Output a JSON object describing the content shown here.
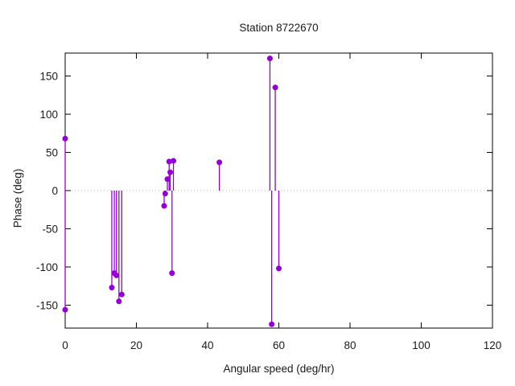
{
  "page": {
    "background": "#ffffff"
  },
  "colors": {
    "series": "#9400d3",
    "zero_line": "#b8b8b8",
    "border": "#000000",
    "text": "#1a1a1a"
  },
  "chart_data": {
    "type": "scatter",
    "style": "impulses-with-points (stem plot)",
    "title": "Station 8722670",
    "xlabel": "Angular speed (deg/hr)",
    "ylabel": "Phase (deg)",
    "xlim": [
      0,
      120
    ],
    "ylim": [
      -180,
      180
    ],
    "xticks": [
      0,
      20,
      40,
      60,
      80,
      100,
      120
    ],
    "yticks": [
      -150,
      -100,
      -50,
      0,
      50,
      100,
      150
    ],
    "grid": false,
    "legend": false,
    "zero_line_dotted": true,
    "series": [
      {
        "name": "phase",
        "color": "#9400d3",
        "x": [
          0,
          0,
          13.1,
          13.8,
          14.4,
          15.1,
          15.9,
          27.8,
          28.1,
          28.7,
          29.2,
          29.5,
          30.0,
          30.4,
          43.3,
          57.5,
          58.0,
          59.0,
          60.0
        ],
        "y": [
          68,
          -156,
          -127,
          -108,
          -111,
          -145,
          -136,
          -20,
          -4,
          15,
          38,
          24,
          -108,
          39,
          37,
          173,
          -175,
          135,
          -102
        ]
      }
    ]
  }
}
